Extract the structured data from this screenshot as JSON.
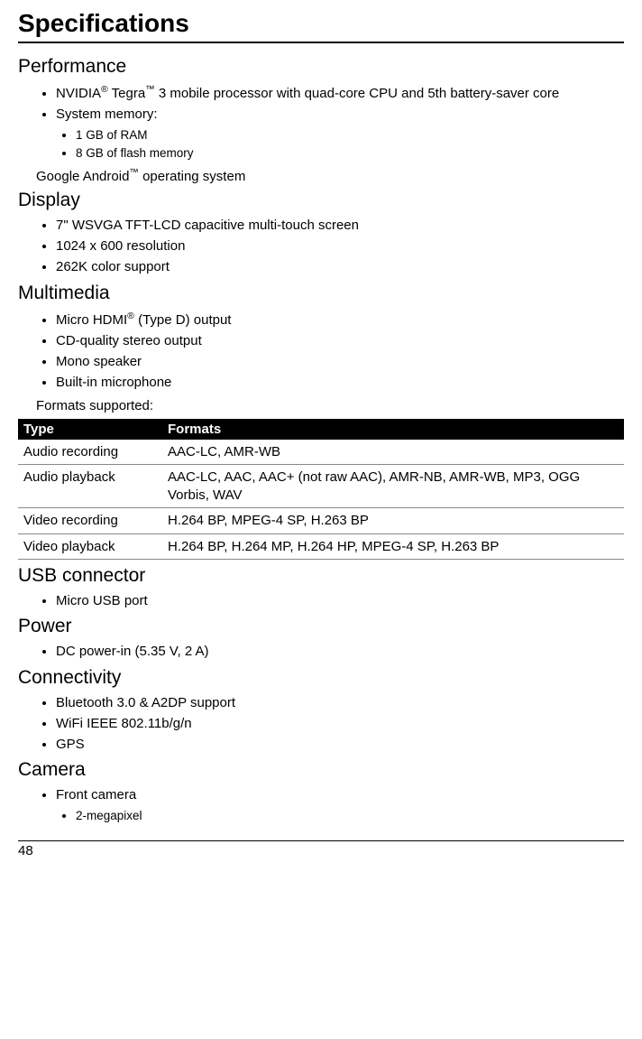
{
  "title": "Specifications",
  "sections": {
    "performance": {
      "heading": "Performance",
      "item0_pre": "NVIDIA",
      "item0_sup1": "®",
      "item0_mid": " Tegra",
      "item0_sup2": "™",
      "item0_post": " 3 mobile processor with quad-core CPU and 5th battery-saver core",
      "item1": "System memory:",
      "sub0": "1 GB of RAM",
      "sub1": "8 GB of flash memory",
      "os_pre": "Google Android",
      "os_sup": "™",
      "os_post": " operating system"
    },
    "display": {
      "heading": "Display",
      "i0": "7\" WSVGA TFT-LCD capacitive multi-touch screen",
      "i1": "1024 x 600 resolution",
      "i2": "262K color support"
    },
    "multimedia": {
      "heading": "Multimedia",
      "i0_pre": "Micro HDMI",
      "i0_sup": "®",
      "i0_post": " (Type D) output",
      "i1": "CD-quality stereo output",
      "i2": "Mono speaker",
      "i3": "Built-in microphone",
      "formats_label": "Formats supported:"
    },
    "table": {
      "col0": "Type",
      "col1": "Formats",
      "r0c0": "Audio recording",
      "r0c1": "AAC-LC, AMR-WB",
      "r1c0": "Audio playback",
      "r1c1": "AAC-LC, AAC, AAC+ (not raw AAC), AMR-NB, AMR-WB, MP3, OGG Vorbis, WAV",
      "r2c0": "Video recording",
      "r2c1": "H.264 BP, MPEG-4 SP, H.263 BP",
      "r3c0": "Video playback",
      "r3c1": "H.264 BP, H.264 MP, H.264 HP, MPEG-4 SP, H.263 BP"
    },
    "usb": {
      "heading": "USB connector",
      "i0": "Micro USB port"
    },
    "power": {
      "heading": "Power",
      "i0": "DC power-in (5.35 V, 2 A)"
    },
    "connectivity": {
      "heading": "Connectivity",
      "i0": "Bluetooth 3.0 & A2DP support",
      "i1": "WiFi IEEE 802.11b/g/n",
      "i2": "GPS"
    },
    "camera": {
      "heading": "Camera",
      "i0": "Front camera",
      "sub0": "2-megapixel"
    }
  },
  "page_number": "48"
}
